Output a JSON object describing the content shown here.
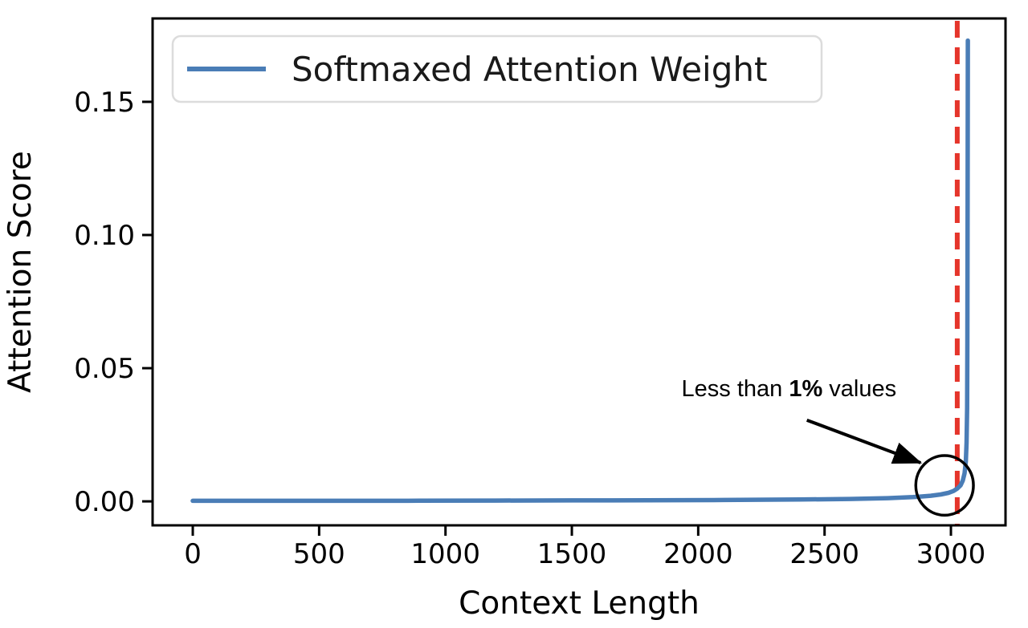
{
  "figure": {
    "background": "#ffffff",
    "frame_color": "#000000"
  },
  "chart_data": {
    "type": "line",
    "title": "",
    "xlabel": "Context Length",
    "ylabel": "Attention Score",
    "xlim": [
      -159,
      3216
    ],
    "ylim": [
      -0.009,
      0.1813
    ],
    "grid": false,
    "xticks": {
      "values": [
        0,
        500,
        1000,
        1500,
        2000,
        2500,
        3000
      ],
      "labels": [
        "0",
        "500",
        "1000",
        "1500",
        "2000",
        "2500",
        "3000"
      ]
    },
    "yticks": {
      "values": [
        0,
        0.05,
        0.1,
        0.15
      ],
      "labels": [
        "0.00",
        "0.05",
        "0.10",
        "0.15"
      ]
    },
    "legend": {
      "position": "upper-left",
      "entries": [
        {
          "label": "Softmaxed Attention Weight",
          "color": "#4a7db6",
          "style": "solid"
        }
      ]
    },
    "series": [
      {
        "name": "Softmaxed Attention Weight",
        "color": "#4a7db6",
        "width": 5.5,
        "points": [
          [
            0,
            0.0002
          ],
          [
            300,
            0.0002
          ],
          [
            600,
            0.0002
          ],
          [
            900,
            0.00025
          ],
          [
            1200,
            0.0003
          ],
          [
            1500,
            0.00035
          ],
          [
            1800,
            0.0004
          ],
          [
            2100,
            0.0005
          ],
          [
            2400,
            0.0007
          ],
          [
            2600,
            0.0009
          ],
          [
            2750,
            0.0012
          ],
          [
            2850,
            0.0016
          ],
          [
            2920,
            0.0021
          ],
          [
            2960,
            0.0026
          ],
          [
            2990,
            0.0032
          ],
          [
            3010,
            0.0039
          ],
          [
            3025,
            0.0048
          ],
          [
            3038,
            0.006
          ],
          [
            3047,
            0.0078
          ],
          [
            3054,
            0.0105
          ],
          [
            3059,
            0.015
          ],
          [
            3062,
            0.022
          ],
          [
            3064,
            0.035
          ],
          [
            3065,
            0.06
          ],
          [
            3066,
            0.11
          ],
          [
            3066.5,
            0.15
          ],
          [
            3067,
            0.173
          ]
        ]
      }
    ],
    "vline": {
      "x": 3025,
      "color": "#e5352b",
      "style": "dashed",
      "width": 6,
      "dash": [
        21,
        12
      ]
    },
    "annotation": {
      "text_prefix": "Less than ",
      "text_bold": "1%",
      "text_suffix": " values",
      "color": "#000000",
      "text_xy": [
        2359,
        0.0425
      ],
      "arrow_from": [
        2430,
        0.0305
      ],
      "arrow_to": [
        2880,
        0.0145
      ],
      "circle": {
        "cx": 2975,
        "cy": 0.006,
        "rx": 114,
        "ry": 0.0112
      }
    }
  }
}
